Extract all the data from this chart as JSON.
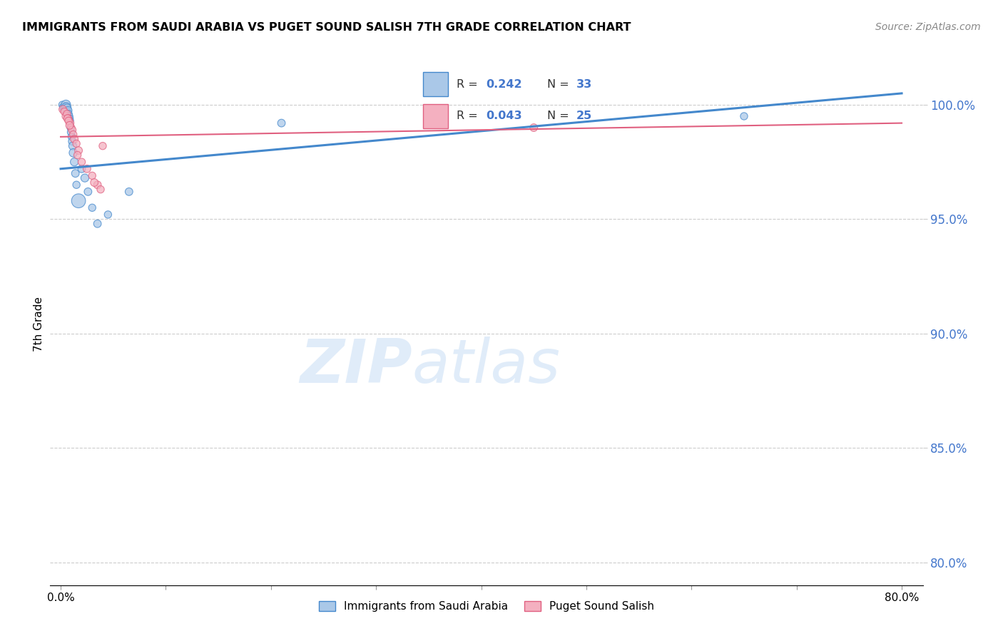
{
  "title": "IMMIGRANTS FROM SAUDI ARABIA VS PUGET SOUND SALISH 7TH GRADE CORRELATION CHART",
  "source": "Source: ZipAtlas.com",
  "ylabel": "7th Grade",
  "y_ticks": [
    80.0,
    85.0,
    90.0,
    95.0,
    100.0
  ],
  "x_ticks": [
    0.0,
    10.0,
    20.0,
    30.0,
    40.0,
    50.0,
    60.0,
    70.0,
    80.0
  ],
  "xlim": [
    -1.0,
    82.0
  ],
  "ylim": [
    79.0,
    101.8
  ],
  "legend_r1": "0.242",
  "legend_n1": "33",
  "legend_r2": "0.043",
  "legend_n2": "25",
  "color_blue": "#aac8e8",
  "color_pink": "#f4b0c0",
  "color_blue_line": "#4488cc",
  "color_pink_line": "#e06080",
  "watermark_zip": "ZIP",
  "watermark_atlas": "atlas",
  "legend_label1": "Immigrants from Saudi Arabia",
  "legend_label2": "Puget Sound Salish",
  "blue_x": [
    0.15,
    0.25,
    0.35,
    0.4,
    0.45,
    0.5,
    0.55,
    0.6,
    0.65,
    0.7,
    0.75,
    0.8,
    0.85,
    0.9,
    0.95,
    1.0,
    1.05,
    1.1,
    1.15,
    1.2,
    1.3,
    1.4,
    1.5,
    1.7,
    2.0,
    2.3,
    2.6,
    3.0,
    3.5,
    4.5,
    6.5,
    21.0,
    65.0
  ],
  "blue_y": [
    100.0,
    99.9,
    99.8,
    99.8,
    99.9,
    100.0,
    99.9,
    99.85,
    99.7,
    99.75,
    99.6,
    99.5,
    99.4,
    99.3,
    99.0,
    98.8,
    98.6,
    98.4,
    98.2,
    97.9,
    97.5,
    97.0,
    96.5,
    95.8,
    97.2,
    96.8,
    96.2,
    95.5,
    94.8,
    95.2,
    96.2,
    99.2,
    99.5
  ],
  "blue_sizes": [
    50,
    55,
    60,
    70,
    80,
    90,
    80,
    70,
    60,
    65,
    55,
    60,
    55,
    50,
    55,
    60,
    55,
    60,
    65,
    70,
    65,
    60,
    55,
    200,
    60,
    65,
    60,
    55,
    60,
    55,
    60,
    60,
    55
  ],
  "pink_x": [
    0.2,
    0.35,
    0.5,
    0.6,
    0.7,
    0.8,
    0.9,
    1.0,
    1.1,
    1.2,
    1.3,
    1.5,
    1.7,
    2.0,
    2.5,
    3.0,
    3.5,
    4.0,
    3.2,
    3.8,
    0.65,
    0.75,
    0.85,
    1.6,
    45.0
  ],
  "pink_y": [
    99.8,
    99.7,
    99.5,
    99.6,
    99.4,
    99.3,
    99.2,
    99.0,
    98.9,
    98.7,
    98.5,
    98.3,
    98.0,
    97.5,
    97.2,
    96.9,
    96.5,
    98.2,
    96.6,
    96.3,
    99.4,
    99.3,
    99.1,
    97.8,
    99.0
  ],
  "pink_sizes": [
    60,
    55,
    60,
    55,
    60,
    55,
    60,
    55,
    60,
    55,
    60,
    55,
    60,
    55,
    60,
    55,
    60,
    55,
    60,
    55,
    60,
    55,
    60,
    55,
    60
  ],
  "blue_trend_x": [
    0.0,
    80.0
  ],
  "blue_trend_y": [
    97.2,
    100.5
  ],
  "pink_trend_x": [
    0.0,
    80.0
  ],
  "pink_trend_y": [
    98.6,
    99.2
  ]
}
